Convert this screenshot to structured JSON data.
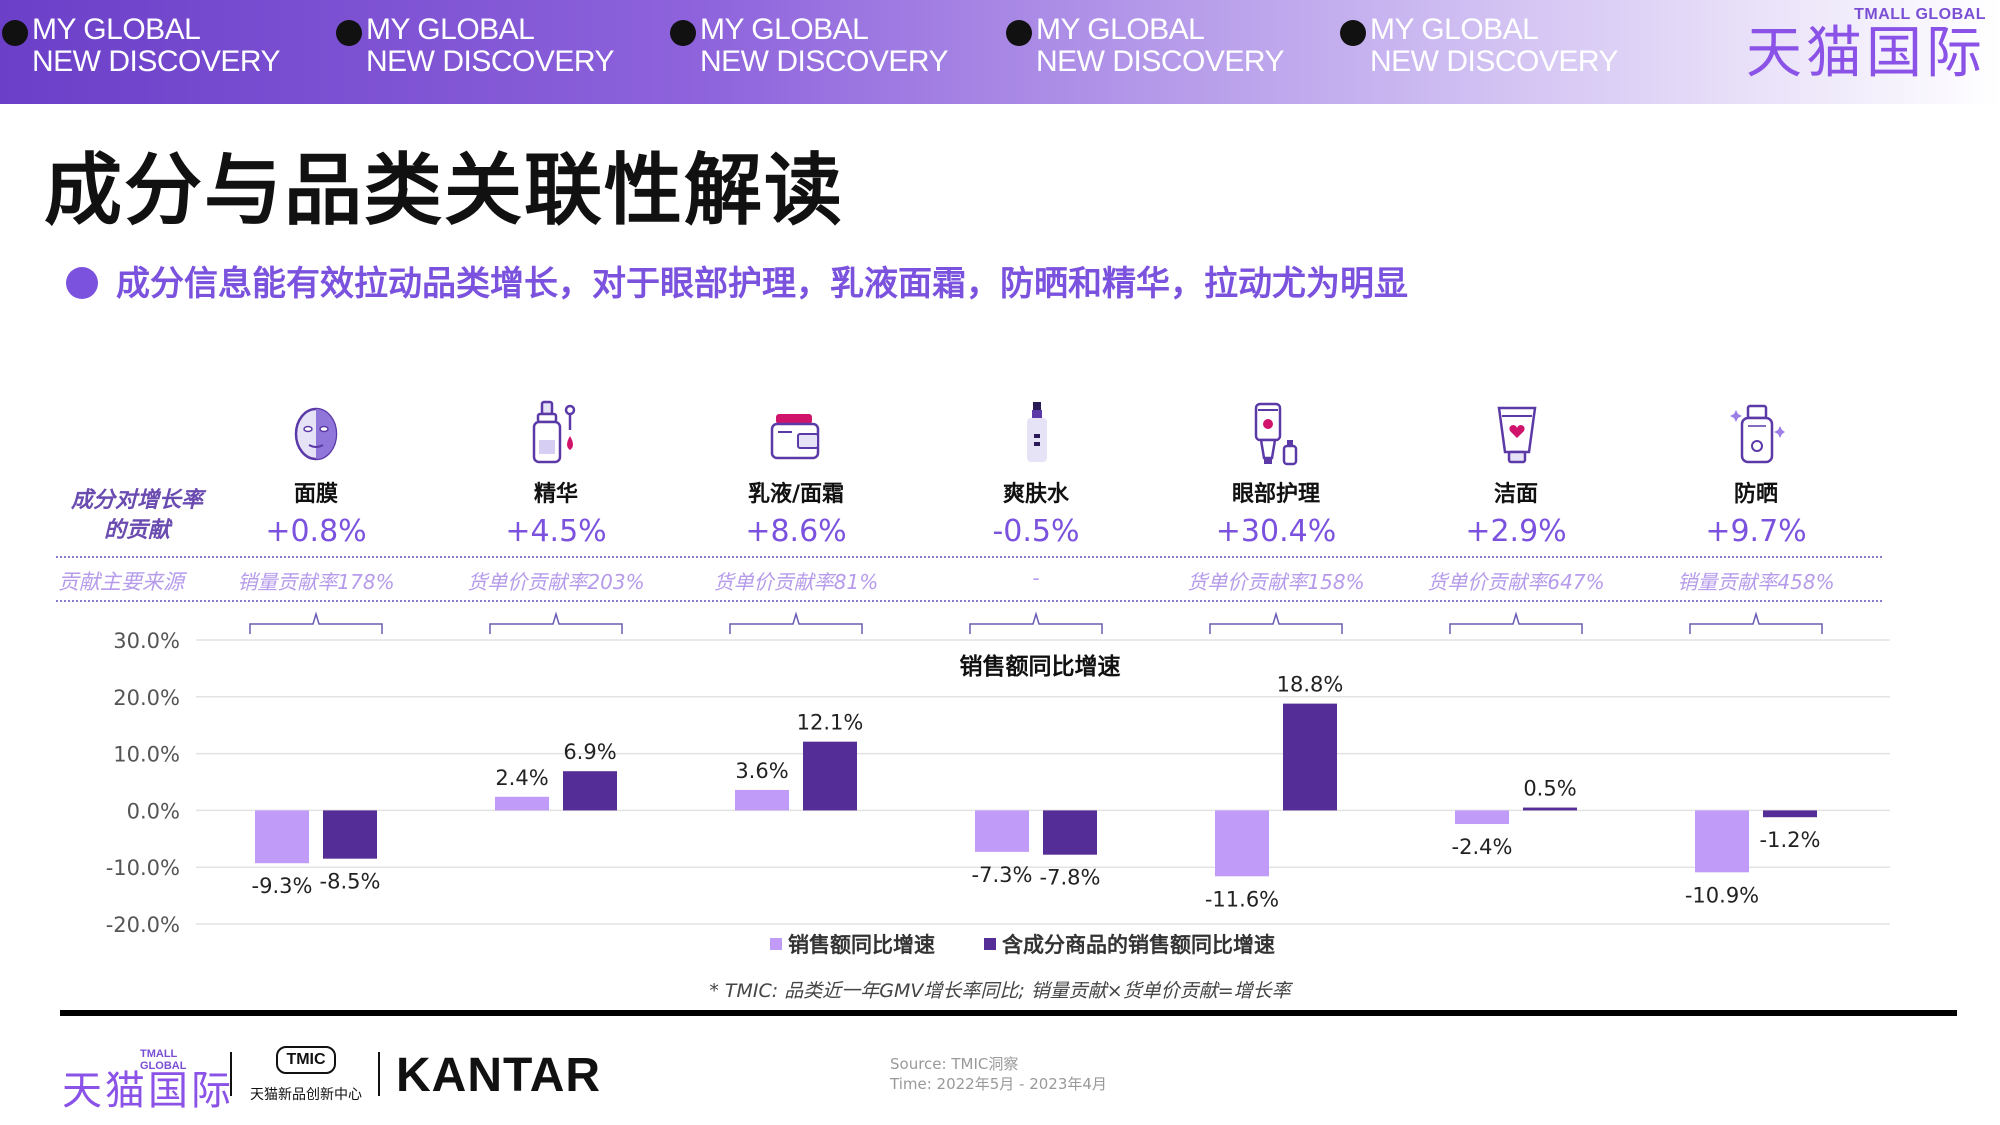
{
  "banner": {
    "taglines": [
      {
        "line1": "MY GLOBAL",
        "line2": "NEW DISCOVERY"
      },
      {
        "line1": "MY GLOBAL",
        "line2": "NEW DISCOVERY"
      },
      {
        "line1": "MY GLOBAL",
        "line2": "NEW DISCOVERY"
      },
      {
        "line1": "MY GLOBAL",
        "line2": "NEW DISCOVERY"
      },
      {
        "line1": "MY GLOBAL",
        "line2": "NEW DISCOVERY"
      }
    ],
    "logo_small": "TMALL GLOBAL",
    "logo_big": "天猫国际"
  },
  "title": "成分与品类关联性解读",
  "subtitle": "成分信息能有效拉动品类增长，对于眼部护理，乳液面霜，防晒和精华，拉动尤为明显",
  "row_labels": {
    "contribution": "成分对增长率的贡献",
    "source": "贡献主要来源"
  },
  "categories": [
    {
      "name": "面膜",
      "contribution": "+0.8%",
      "source": "销量贡献率178%",
      "icon": "face-mask-icon"
    },
    {
      "name": "精华",
      "contribution": "+4.5%",
      "source": "货单价贡献率203%",
      "icon": "serum-dropper-icon"
    },
    {
      "name": "乳液/面霜",
      "contribution": "+8.6%",
      "source": "货单价贡献率81%",
      "icon": "cream-jar-icon"
    },
    {
      "name": "爽肤水",
      "contribution": "-0.5%",
      "source": "-",
      "icon": "toner-bottle-icon"
    },
    {
      "name": "眼部护理",
      "contribution": "+30.4%",
      "source": "货单价贡献率158%",
      "icon": "eye-cream-tube-icon"
    },
    {
      "name": "洁面",
      "contribution": "+2.9%",
      "source": "货单价贡献率647%",
      "icon": "cleanser-tube-icon"
    },
    {
      "name": "防晒",
      "contribution": "+9.7%",
      "source": "销量贡献率458%",
      "icon": "sunscreen-bottle-icon"
    }
  ],
  "chart_data": {
    "type": "bar",
    "title": "销售额同比增速",
    "categories": [
      "面膜",
      "精华",
      "乳液/面霜",
      "爽肤水",
      "眼部护理",
      "洁面",
      "防晒"
    ],
    "series": [
      {
        "name": "销售额同比增速",
        "values": [
          -9.3,
          2.4,
          3.6,
          -7.3,
          -11.6,
          -2.4,
          -10.9
        ],
        "color": "#c09cf8"
      },
      {
        "name": "含成分商品的销售额同比增速",
        "values": [
          -8.5,
          6.9,
          12.1,
          -7.8,
          18.8,
          0.5,
          -1.2
        ],
        "color": "#552d96"
      }
    ],
    "data_labels": [
      [
        "-9.3%",
        "2.4%",
        "3.6%",
        "-7.3%",
        "-11.6%",
        "-2.4%",
        "-10.9%"
      ],
      [
        "-8.5%",
        "6.9%",
        "12.1%",
        "-7.8%",
        "18.8%",
        "0.5%",
        "-1.2%"
      ]
    ],
    "yticks": [
      "30.0%",
      "20.0%",
      "10.0%",
      "0.0%",
      "-10.0%",
      "-20.0%"
    ],
    "ytick_values": [
      30,
      20,
      10,
      0,
      -10,
      -20
    ],
    "ylim": [
      -20,
      30
    ],
    "grid": true,
    "legend_position": "bottom"
  },
  "footnote": "* TMIC: 品类近一年GMV增长率同比; 销量贡献×货单价贡献=增长率",
  "footer": {
    "tmall_small": "TMALL GLOBAL",
    "tmall_big": "天猫国际",
    "tmic_label": "TMIC",
    "tmic_sub": "天猫新品创新中心",
    "kantar": "KANTAR",
    "source_line1": "Source: TMIC洞察",
    "source_line2": "Time: 2022年5月 - 2023年4月"
  }
}
